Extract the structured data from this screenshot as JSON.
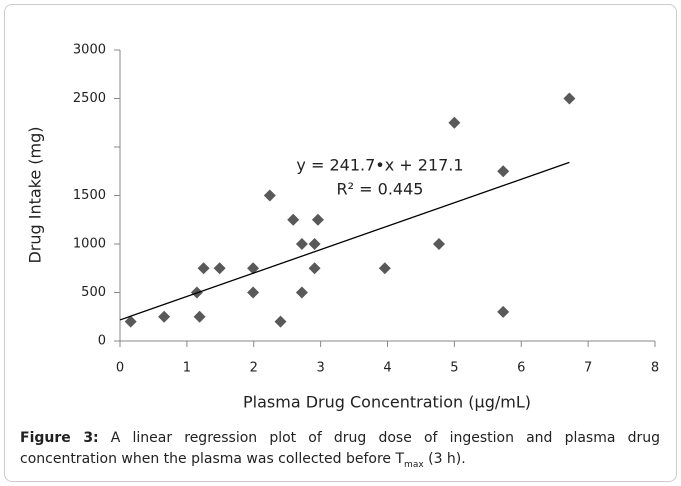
{
  "chart_data": {
    "type": "scatter",
    "x_label": "Plasma  Drug Concentration (μg/mL)",
    "y_label": "Drug Intake (mg)",
    "x": [
      0.16,
      0.66,
      1.15,
      1.19,
      1.25,
      1.49,
      1.99,
      1.99,
      2.24,
      2.4,
      2.59,
      2.72,
      2.72,
      2.91,
      2.91,
      2.96,
      3.96,
      4.77,
      5.0,
      5.73,
      5.73,
      6.72
    ],
    "values": [
      200,
      250,
      500,
      250,
      750,
      750,
      750,
      500,
      1500,
      200,
      1250,
      1000,
      500,
      1000,
      750,
      1250,
      750,
      1000,
      2250,
      1750,
      300,
      2500
    ],
    "color": "#595959",
    "xlim": [
      0,
      8
    ],
    "xticks": [
      0,
      1,
      2,
      3,
      4,
      5,
      6,
      7,
      8
    ],
    "ylim": [
      0,
      3000
    ],
    "yticks": [
      0,
      500,
      1000,
      1500,
      2500,
      3000
    ],
    "trendline": {
      "slope": 241.7,
      "intercept": 217.1,
      "color": "#000000"
    },
    "equation": "y = 241.7•x + 217.1",
    "r_squared": "R² = 0.445"
  },
  "caption": {
    "label": "Figure 3:",
    "text": " A linear regression plot of drug dose of ingestion and plasma drug concentration when the plasma was collected before T",
    "sub": "max",
    "tail": " (3 h)."
  }
}
